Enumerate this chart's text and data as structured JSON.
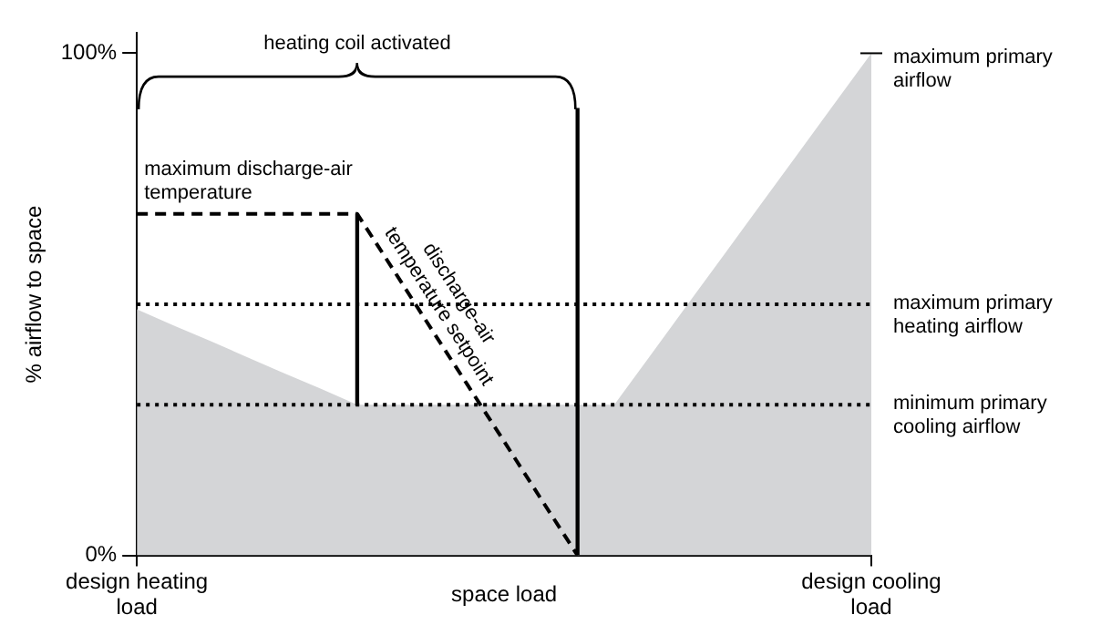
{
  "chart_data": {
    "type": "area",
    "ylabel": "% airflow to space",
    "xlabel": "space load",
    "categories": [
      "design heating load",
      null,
      null,
      null,
      null,
      null,
      null,
      null,
      null,
      null,
      null,
      null,
      null,
      null,
      null,
      null,
      null,
      null,
      null,
      null,
      "design cooling load"
    ],
    "ylim": [
      0,
      104
    ],
    "yticks": [
      {
        "value": 0,
        "label": "0%"
      },
      {
        "value": 100,
        "label": "100%"
      }
    ],
    "grid": false,
    "legend": false,
    "series": [
      {
        "color": "#d4d5d7",
        "values": [
          49,
          45.8,
          42.7,
          39.5,
          36.3,
          33.2,
          30,
          30,
          30,
          30,
          30,
          30,
          30,
          30,
          40,
          50,
          60,
          70,
          80,
          90,
          100
        ]
      },
      {
        "type": "line",
        "color": "#000000",
        "line_style": "dashed",
        "values": [
          68,
          68,
          68,
          68,
          68,
          68,
          68,
          56.7,
          45.3,
          34,
          22.7,
          11.3,
          0,
          null,
          null,
          null,
          null,
          null,
          null,
          null,
          null
        ]
      },
      {
        "type": "bar",
        "color": "#000000",
        "values": [
          null,
          null,
          null,
          null,
          null,
          null,
          38,
          null,
          null,
          null,
          null,
          null,
          89,
          null,
          null,
          null,
          null,
          null,
          null,
          null,
          null
        ],
        "base": [
          null,
          null,
          null,
          null,
          null,
          null,
          30,
          null,
          null,
          null,
          null,
          null,
          0,
          null,
          null,
          null,
          null,
          null,
          null,
          null,
          null
        ]
      }
    ],
    "ref_lines": [
      {
        "axis": "y",
        "value": 50,
        "label": "maximum primary heating airflow",
        "color": "#000000",
        "line_style": "dotted"
      },
      {
        "axis": "y",
        "value": 30,
        "label": "minimum primary cooling airflow",
        "color": "#000000",
        "line_style": "dotted"
      }
    ],
    "annotations": [
      "heating coil activated",
      {
        "text": "maximum discharge-air temperature",
        "x": "design heating load",
        "y": 68
      },
      "discharge-air temperature setpoint",
      {
        "text": "maximum primary airflow",
        "x": "design cooling load",
        "y": 100
      }
    ]
  }
}
